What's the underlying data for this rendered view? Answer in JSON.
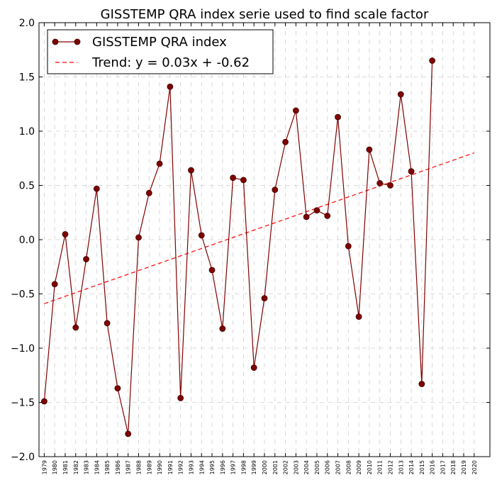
{
  "chart_data": {
    "type": "line",
    "title": "GISSTEMP QRA index serie used to find scale factor",
    "xlabel": "",
    "ylabel": "",
    "ylim": [
      -2.0,
      2.0
    ],
    "xlim": [
      1978.5,
      2021.5
    ],
    "yticks": [
      "2.0",
      "1.5",
      "1.0",
      "0.5",
      "0.0",
      "−0.5",
      "−1.0",
      "−1.5",
      "−2.0"
    ],
    "ytick_values": [
      2.0,
      1.5,
      1.0,
      0.5,
      0.0,
      -0.5,
      -1.0,
      -1.5,
      -2.0
    ],
    "xticks": [
      "1979",
      "1980",
      "1981",
      "1982",
      "1983",
      "1984",
      "1985",
      "1986",
      "1987",
      "1988",
      "1989",
      "1990",
      "1991",
      "1992",
      "1993",
      "1994",
      "1995",
      "1996",
      "1997",
      "1998",
      "1999",
      "2000",
      "2001",
      "2002",
      "2003",
      "2004",
      "2005",
      "2006",
      "2007",
      "2008",
      "2009",
      "2010",
      "2011",
      "2012",
      "2013",
      "2014",
      "2015",
      "2016",
      "2017",
      "2018",
      "2019",
      "2020"
    ],
    "grid": true,
    "legend_position": "top-left",
    "series": [
      {
        "name": "GISSTEMP QRA index",
        "color": "#800000",
        "x": [
          1979,
          1980,
          1981,
          1982,
          1983,
          1984,
          1985,
          1986,
          1987,
          1988,
          1989,
          1990,
          1991,
          1992,
          1993,
          1994,
          1995,
          1996,
          1997,
          1998,
          1999,
          2000,
          2001,
          2002,
          2003,
          2004,
          2005,
          2006,
          2007,
          2008,
          2009,
          2010,
          2011,
          2012,
          2013,
          2014,
          2015,
          2016
        ],
        "y": [
          -1.49,
          -0.41,
          0.05,
          -0.81,
          -0.18,
          0.47,
          -0.77,
          -1.37,
          -1.79,
          0.02,
          0.43,
          0.7,
          1.41,
          -1.46,
          0.64,
          0.04,
          -0.28,
          -0.82,
          0.57,
          0.55,
          -1.18,
          -0.54,
          0.46,
          0.9,
          1.19,
          0.21,
          0.27,
          0.22,
          1.13,
          -0.06,
          -0.71,
          0.83,
          0.52,
          0.5,
          1.34,
          0.63,
          -1.33,
          1.65
        ]
      },
      {
        "name": "Trend: y = 0.03x + -0.62",
        "color": "#ff0000",
        "style": "dashed",
        "x": [
          1979,
          2020
        ],
        "y": [
          -0.59,
          0.8
        ]
      }
    ]
  }
}
